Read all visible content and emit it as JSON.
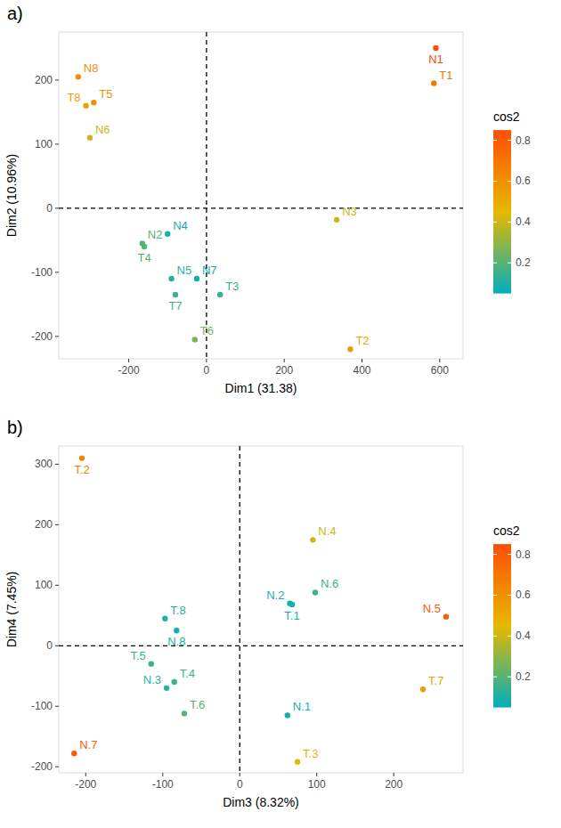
{
  "chart_data": [
    {
      "type": "scatter",
      "panel_label": "a)",
      "x_label": "Dim1 (31.38)",
      "y_label": "Dim2 (10.96%)",
      "xlim": [
        -380,
        660
      ],
      "ylim": [
        -235,
        275
      ],
      "xticks": [
        -200,
        0,
        200,
        400,
        600
      ],
      "yticks": [
        -200,
        -100,
        0,
        100,
        200
      ],
      "grid": false,
      "reference_lines": {
        "x": 0,
        "y": 0
      },
      "series": [
        {
          "labels": [
            "N1",
            "T1",
            "N8",
            "T5",
            "T8",
            "N6",
            "N3",
            "T2",
            "N2",
            "T4",
            "N4",
            "N5",
            "N7",
            "T7",
            "T3",
            "T6"
          ],
          "x": [
            590,
            585,
            -330,
            -290,
            -310,
            -300,
            335,
            370,
            -165,
            -160,
            -100,
            -90,
            -25,
            -80,
            35,
            -30
          ],
          "values": [
            250,
            195,
            205,
            165,
            160,
            110,
            -18,
            -220,
            -55,
            -60,
            -40,
            -110,
            -110,
            -135,
            -135,
            -205
          ],
          "cos2": [
            0.85,
            0.7,
            0.6,
            0.6,
            0.55,
            0.4,
            0.4,
            0.55,
            0.2,
            0.2,
            0.08,
            0.12,
            0.08,
            0.15,
            0.15,
            0.25
          ]
        }
      ],
      "colorbar": {
        "title": "cos2",
        "range": [
          0.05,
          0.85
        ],
        "ticks": [
          0.2,
          0.4,
          0.6,
          0.8
        ],
        "colors": [
          "#00AFBB",
          "#E7B800",
          "#FC4E07"
        ]
      }
    },
    {
      "type": "scatter",
      "panel_label": "b)",
      "x_label": "Dim3 (8.32%)",
      "y_label": "Dim4 (7.45%)",
      "xlim": [
        -235,
        290
      ],
      "ylim": [
        -210,
        330
      ],
      "xticks": [
        -200,
        -100,
        0,
        100,
        200
      ],
      "yticks": [
        -200,
        -100,
        0,
        100,
        200,
        300
      ],
      "grid": false,
      "reference_lines": {
        "x": 0,
        "y": 0
      },
      "series": [
        {
          "labels": [
            "T.2",
            "N.7",
            "T.8",
            "N.8",
            "T.5",
            "T.4",
            "N.3",
            "T.6",
            "N.4",
            "N.6",
            "N.2",
            "T.1",
            "N.5",
            "T.7",
            "N.1",
            "T.3"
          ],
          "x": [
            -205,
            -215,
            -97,
            -82,
            -115,
            -85,
            -95,
            -72,
            95,
            98,
            65,
            68,
            268,
            238,
            62,
            75
          ],
          "values": [
            310,
            -178,
            45,
            25,
            -30,
            -60,
            -70,
            -112,
            175,
            88,
            70,
            68,
            48,
            -72,
            -115,
            -192
          ],
          "cos2": [
            0.65,
            0.8,
            0.1,
            0.08,
            0.15,
            0.15,
            0.12,
            0.2,
            0.4,
            0.15,
            0.08,
            0.08,
            0.8,
            0.55,
            0.08,
            0.45
          ]
        }
      ],
      "colorbar": {
        "title": "cos2",
        "range": [
          0.05,
          0.85
        ],
        "ticks": [
          0.2,
          0.4,
          0.6,
          0.8
        ],
        "colors": [
          "#00AFBB",
          "#E7B800",
          "#FC4E07"
        ]
      }
    }
  ]
}
